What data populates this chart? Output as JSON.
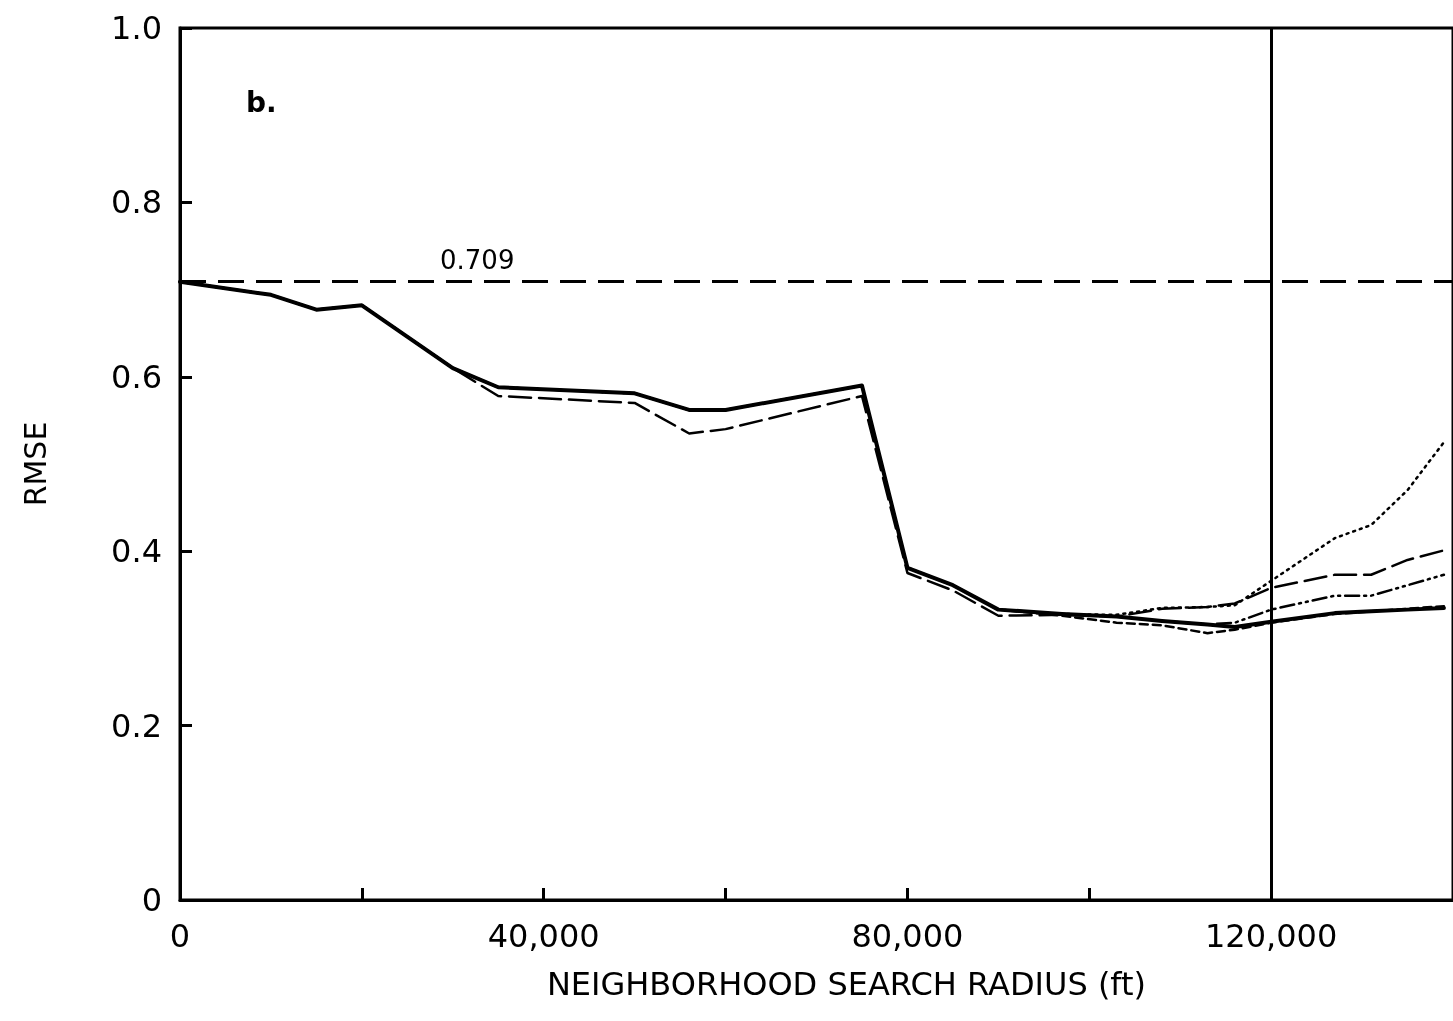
{
  "chart_data": {
    "type": "line",
    "xlabel": "NEIGHBORHOOD SEARCH RADIUS (ft)",
    "ylabel": "RMSE",
    "x": [
      0,
      10000,
      15000,
      20000,
      30000,
      35000,
      50000,
      56000,
      60000,
      75000,
      80000,
      85000,
      90000,
      97000,
      103000,
      108000,
      113000,
      116000,
      120000,
      127000,
      131000,
      135000,
      139000
    ],
    "series": [
      {
        "color": "#000000",
        "line_style": "solid",
        "values": [
          0.709,
          0.694,
          0.677,
          0.682,
          0.61,
          0.588,
          0.581,
          0.562,
          0.562,
          0.59,
          0.381,
          0.361,
          0.333,
          0.328,
          0.325,
          0.32,
          0.316,
          0.313,
          0.319,
          0.329,
          0.331,
          0.333,
          0.335
        ]
      },
      {
        "color": "#000000",
        "line_style": "dotted",
        "values": [
          0.709,
          0.694,
          0.677,
          0.682,
          0.61,
          0.588,
          0.581,
          0.562,
          0.562,
          0.59,
          0.381,
          0.361,
          0.333,
          0.328,
          0.327,
          0.335,
          0.336,
          0.338,
          0.366,
          0.415,
          0.43,
          0.47,
          0.525
        ]
      },
      {
        "color": "#000000",
        "line_style": "long_dashed",
        "values": [
          0.709,
          0.694,
          0.677,
          0.682,
          0.61,
          0.578,
          0.57,
          0.535,
          0.54,
          0.578,
          0.375,
          0.355,
          0.326,
          0.327,
          0.325,
          0.334,
          0.336,
          0.34,
          0.358,
          0.373,
          0.373,
          0.39,
          0.401
        ]
      },
      {
        "color": "#000000",
        "line_style": "dash_dot",
        "values": [
          0.709,
          0.694,
          0.677,
          0.682,
          0.61,
          0.588,
          0.581,
          0.562,
          0.562,
          0.59,
          0.381,
          0.361,
          0.333,
          0.328,
          0.325,
          0.32,
          0.316,
          0.318,
          0.333,
          0.349,
          0.349,
          0.361,
          0.373
        ]
      },
      {
        "color": "#000000",
        "line_style": "dashed",
        "values": [
          0.709,
          0.694,
          0.677,
          0.682,
          0.61,
          0.588,
          0.581,
          0.562,
          0.562,
          0.59,
          0.381,
          0.361,
          0.333,
          0.326,
          0.318,
          0.315,
          0.306,
          0.31,
          0.318,
          0.328,
          0.331,
          0.334,
          0.337
        ]
      }
    ],
    "xlim": [
      0,
      140000
    ],
    "xticks": [
      0,
      {
        "value": 20000,
        "label": null
      },
      {
        "value": 40000,
        "label": "40,000"
      },
      {
        "value": 60000,
        "label": null
      },
      {
        "value": 80000,
        "label": "80,000"
      },
      {
        "value": 100000,
        "label": null
      },
      {
        "value": 120000,
        "label": "120,000"
      }
    ],
    "ylim": [
      0,
      1
    ],
    "yticks": [
      0,
      0.2,
      0.4,
      0.6,
      0.8,
      {
        "value": 1,
        "label": "1.0"
      }
    ],
    "ref_lines": [
      {
        "axis": "y",
        "value": 0.709,
        "label": "0.709",
        "line_style": "dashed",
        "color": "#000000"
      },
      {
        "axis": "x",
        "value": 120000,
        "label": null,
        "line_style": "solid",
        "color": "#000000"
      }
    ],
    "annotations": [
      "b."
    ],
    "grid": false,
    "marker": "none"
  }
}
